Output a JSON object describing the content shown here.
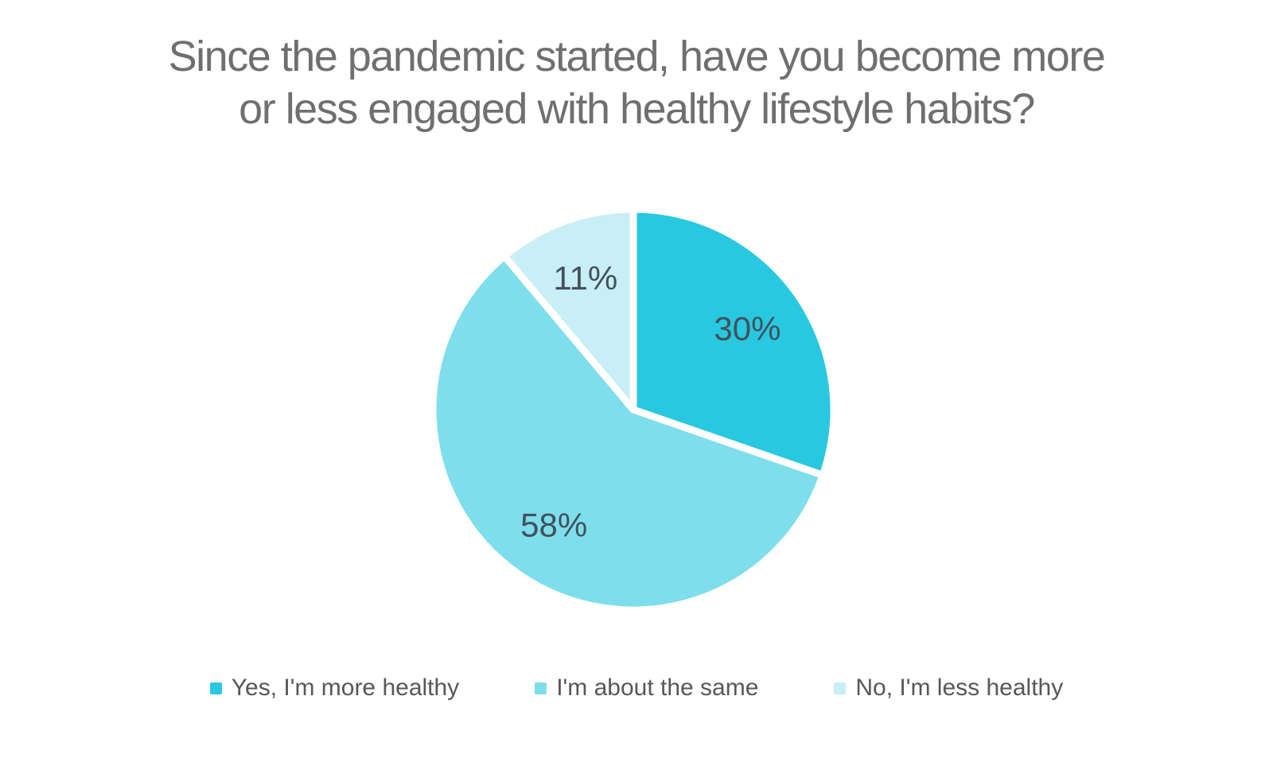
{
  "chart_data": {
    "type": "pie",
    "title": "Since the pandemic started, have you become more or less engaged with healthy lifestyle habits?",
    "title_lines": [
      "Since the pandemic started, have you become more",
      "or less engaged with healthy lifestyle habits?"
    ],
    "categories": [
      "Yes, I'm more healthy",
      "I'm about the same",
      "No, I'm less healthy"
    ],
    "values": [
      30,
      58,
      11
    ],
    "data_labels": [
      "30%",
      "58%",
      "11%"
    ],
    "colors": [
      "#28C8E1",
      "#7EDEEC",
      "#C8EEF6"
    ],
    "legend_position": "bottom",
    "start_angle_deg": 0,
    "direction": "clockwise",
    "slice_gap_color": "#FFFFFF",
    "text_colors": {
      "title": "#6F6F6F",
      "slice_label": "#42515B",
      "legend": "#575757"
    }
  }
}
